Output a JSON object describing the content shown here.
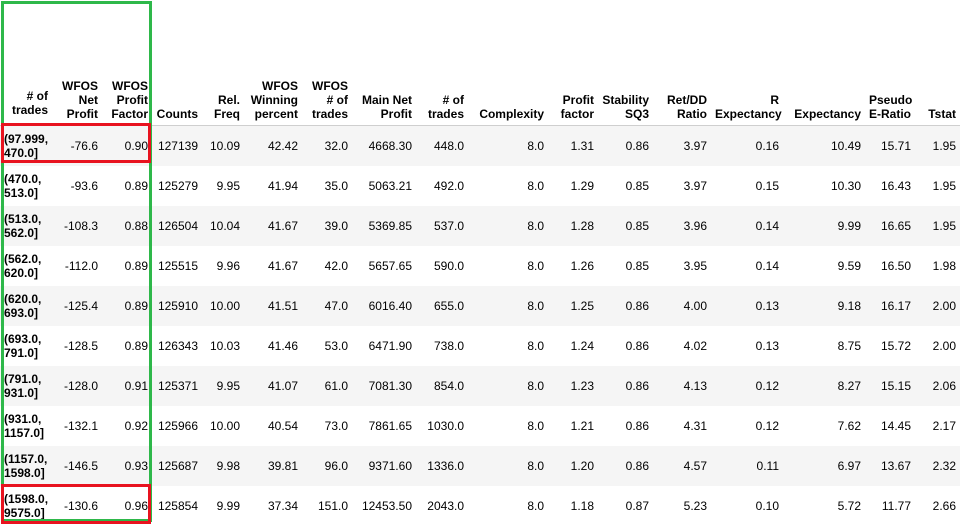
{
  "table": {
    "index_name": "# of trades",
    "columns": [
      "WFOS Net Profit",
      "WFOS Profit Factor",
      "Counts",
      "Rel. Freq",
      "WFOS Winning percent",
      "WFOS # of trades",
      "Main Net Profit",
      "# of trades",
      "Complexity",
      "Profit factor",
      "Stability SQ3",
      "Ret/DD Ratio",
      "R Expectancy",
      "Expectancy",
      "Pseudo E-Ratio",
      "Tstat"
    ],
    "rows": [
      {
        "index": "(97.999, 470.0]",
        "cells": [
          "-76.6",
          "0.90",
          "127139",
          "10.09",
          "42.42",
          "32.0",
          "4668.30",
          "448.0",
          "8.0",
          "1.31",
          "0.86",
          "3.97",
          "0.16",
          "10.49",
          "15.71",
          "1.95"
        ]
      },
      {
        "index": "(470.0, 513.0]",
        "cells": [
          "-93.6",
          "0.89",
          "125279",
          "9.95",
          "41.94",
          "35.0",
          "5063.21",
          "492.0",
          "8.0",
          "1.29",
          "0.85",
          "3.97",
          "0.15",
          "10.30",
          "16.43",
          "1.95"
        ]
      },
      {
        "index": "(513.0, 562.0]",
        "cells": [
          "-108.3",
          "0.88",
          "126504",
          "10.04",
          "41.67",
          "39.0",
          "5369.85",
          "537.0",
          "8.0",
          "1.28",
          "0.85",
          "3.96",
          "0.14",
          "9.99",
          "16.65",
          "1.95"
        ]
      },
      {
        "index": "(562.0, 620.0]",
        "cells": [
          "-112.0",
          "0.89",
          "125515",
          "9.96",
          "41.67",
          "42.0",
          "5657.65",
          "590.0",
          "8.0",
          "1.26",
          "0.85",
          "3.95",
          "0.14",
          "9.59",
          "16.50",
          "1.98"
        ]
      },
      {
        "index": "(620.0, 693.0]",
        "cells": [
          "-125.4",
          "0.89",
          "125910",
          "10.00",
          "41.51",
          "47.0",
          "6016.40",
          "655.0",
          "8.0",
          "1.25",
          "0.86",
          "4.00",
          "0.13",
          "9.18",
          "16.17",
          "2.00"
        ]
      },
      {
        "index": "(693.0, 791.0]",
        "cells": [
          "-128.5",
          "0.89",
          "126343",
          "10.03",
          "41.46",
          "53.0",
          "6471.90",
          "738.0",
          "8.0",
          "1.24",
          "0.86",
          "4.02",
          "0.13",
          "8.75",
          "15.72",
          "2.00"
        ]
      },
      {
        "index": "(791.0, 931.0]",
        "cells": [
          "-128.0",
          "0.91",
          "125371",
          "9.95",
          "41.07",
          "61.0",
          "7081.30",
          "854.0",
          "8.0",
          "1.23",
          "0.86",
          "4.13",
          "0.12",
          "8.27",
          "15.15",
          "2.06"
        ]
      },
      {
        "index": "(931.0, 1157.0]",
        "cells": [
          "-132.1",
          "0.92",
          "125966",
          "10.00",
          "40.54",
          "73.0",
          "7861.65",
          "1030.0",
          "8.0",
          "1.21",
          "0.86",
          "4.31",
          "0.12",
          "7.62",
          "14.45",
          "2.17"
        ]
      },
      {
        "index": "(1157.0, 1598.0]",
        "cells": [
          "-146.5",
          "0.93",
          "125687",
          "9.98",
          "39.81",
          "96.0",
          "9371.60",
          "1336.0",
          "8.0",
          "1.20",
          "0.86",
          "4.57",
          "0.11",
          "6.97",
          "13.67",
          "2.32"
        ]
      },
      {
        "index": "(1598.0, 9575.0]",
        "cells": [
          "-130.6",
          "0.96",
          "125854",
          "9.99",
          "37.34",
          "151.0",
          "12453.50",
          "2043.0",
          "8.0",
          "1.18",
          "0.87",
          "5.23",
          "0.10",
          "5.72",
          "11.77",
          "2.66"
        ]
      }
    ]
  },
  "annotations": {
    "green_box_color": "#2eb84a",
    "red_box_color": "#e8131f"
  }
}
